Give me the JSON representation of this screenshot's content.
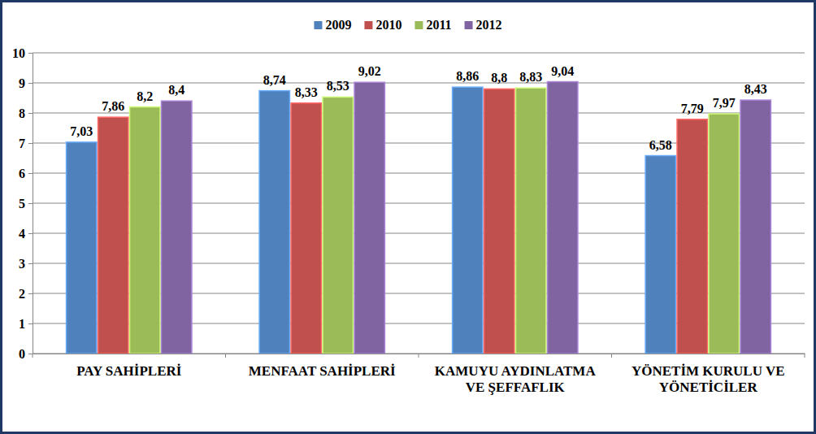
{
  "chart_data": {
    "type": "bar",
    "categories": [
      "PAY SAHİPLERİ",
      "MENFAAT SAHİPLERİ",
      "KAMUYU AYDINLATMA VE ŞEFFAFLIK",
      "YÖNETİM KURULU VE YÖNETİCİLER"
    ],
    "series": [
      {
        "name": "2009",
        "color": "#4F81BD",
        "values": [
          7.03,
          8.74,
          8.86,
          6.58
        ],
        "value_labels": [
          "7,03",
          "8,74",
          "8,86",
          "6,58"
        ]
      },
      {
        "name": "2010",
        "color": "#C0504D",
        "values": [
          7.86,
          8.33,
          8.8,
          7.79
        ],
        "value_labels": [
          "7,86",
          "8,33",
          "8,8",
          "7,79"
        ]
      },
      {
        "name": "2011",
        "color": "#9BBB59",
        "values": [
          8.2,
          8.53,
          8.83,
          7.97
        ],
        "value_labels": [
          "8,2",
          "8,53",
          "8,83",
          "7,97"
        ]
      },
      {
        "name": "2012",
        "color": "#8064A2",
        "values": [
          8.4,
          9.02,
          9.04,
          8.43
        ],
        "value_labels": [
          "8,4",
          "9,02",
          "9,04",
          "8,43"
        ]
      }
    ],
    "ylim": [
      0,
      10
    ],
    "yticks": [
      0,
      1,
      2,
      3,
      4,
      5,
      6,
      7,
      8,
      9,
      10
    ],
    "grid": true,
    "legend": "top",
    "data_labels": true
  }
}
